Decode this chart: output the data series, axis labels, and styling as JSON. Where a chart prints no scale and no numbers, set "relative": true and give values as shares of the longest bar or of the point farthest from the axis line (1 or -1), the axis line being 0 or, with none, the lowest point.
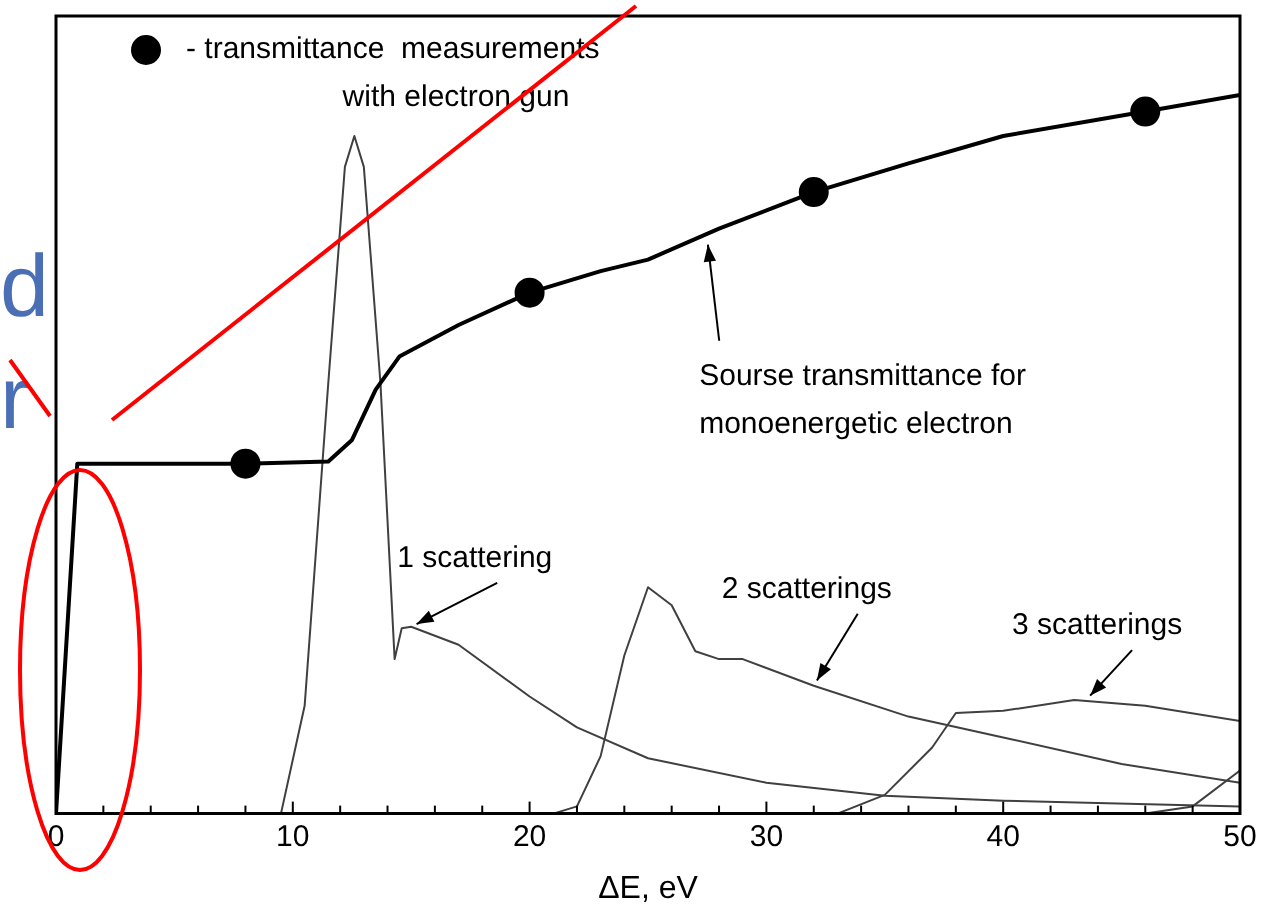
{
  "chart_data": {
    "type": "line",
    "xlabel": "ΔE, eV",
    "relative": true,
    "xlim": [
      0,
      50
    ],
    "xticks": [
      0,
      {
        "value": 2,
        "label": null
      },
      {
        "value": 4,
        "label": null
      },
      {
        "value": 6,
        "label": null
      },
      {
        "value": 8,
        "label": null
      },
      10,
      {
        "value": 12,
        "label": null
      },
      {
        "value": 14,
        "label": null
      },
      {
        "value": 16,
        "label": null
      },
      {
        "value": 18,
        "label": null
      },
      20,
      {
        "value": 22,
        "label": null
      },
      {
        "value": 24,
        "label": null
      },
      {
        "value": 26,
        "label": null
      },
      {
        "value": 28,
        "label": null
      },
      30,
      {
        "value": 32,
        "label": null
      },
      {
        "value": 34,
        "label": null
      },
      {
        "value": 36,
        "label": null
      },
      {
        "value": 38,
        "label": null
      },
      40,
      {
        "value": 42,
        "label": null
      },
      {
        "value": 44,
        "label": null
      },
      {
        "value": 46,
        "label": null
      },
      {
        "value": 48,
        "label": null
      },
      50
    ],
    "legend": "top left",
    "grid": false,
    "series": [
      {
        "color": "#000000",
        "x": [
          0,
          0.9,
          8,
          11.5,
          12.5,
          13.5,
          14.5,
          17,
          20,
          23,
          25,
          28,
          32,
          36,
          40,
          46,
          50
        ],
        "values": [
          0,
          0.487,
          0.487,
          0.49,
          0.52,
          0.59,
          0.636,
          0.68,
          0.725,
          0.755,
          0.771,
          0.814,
          0.865,
          0.905,
          0.943,
          0.977,
          1
        ]
      },
      {
        "type": "scatter",
        "name": "- transmittance  measurements with electron gun",
        "color": "#000000",
        "marker": "circle",
        "x": [
          8,
          20,
          32,
          46
        ],
        "values": [
          0.487,
          0.725,
          0.865,
          0.977
        ]
      },
      {
        "color": "#404040",
        "x": [
          9.5,
          10.5,
          11.5,
          12.2,
          12.6,
          13,
          13.7,
          14.3,
          14.6,
          15,
          17,
          20,
          22,
          25,
          30,
          35,
          40,
          50
        ],
        "values": [
          0,
          0.15,
          0.6,
          0.9,
          0.943,
          0.9,
          0.6,
          0.215,
          0.258,
          0.26,
          0.235,
          0.163,
          0.12,
          0.077,
          0.043,
          0.025,
          0.018,
          0.01
        ]
      },
      {
        "color": "#404040",
        "x": [
          21,
          22,
          23,
          24,
          25,
          26,
          27,
          28,
          29,
          32,
          36,
          40,
          45,
          50
        ],
        "values": [
          0,
          0.01,
          0.08,
          0.22,
          0.315,
          0.29,
          0.226,
          0.215,
          0.215,
          0.178,
          0.135,
          0.106,
          0.069,
          0.043
        ]
      },
      {
        "color": "#404040",
        "x": [
          33,
          35,
          37,
          38,
          40,
          43,
          46,
          50
        ],
        "values": [
          0,
          0.026,
          0.092,
          0.14,
          0.143,
          0.158,
          0.15,
          0.129
        ]
      },
      {
        "color": "#404040",
        "x": [
          46,
          48,
          50
        ],
        "values": [
          0,
          0.01,
          0.06
        ]
      }
    ],
    "annotations": [
      {
        "text": "Sourse transmittance for monoenergetic electron",
        "x": 27.5,
        "y": 0.8
      },
      {
        "text": "1 scattering",
        "x": 15,
        "y": 0.26
      },
      {
        "text": "2 scatterings",
        "x": 32,
        "y": 0.178
      },
      {
        "text": "3 scatterings",
        "x": 43.5,
        "y": 0.158
      },
      "d",
      "r"
    ]
  }
}
